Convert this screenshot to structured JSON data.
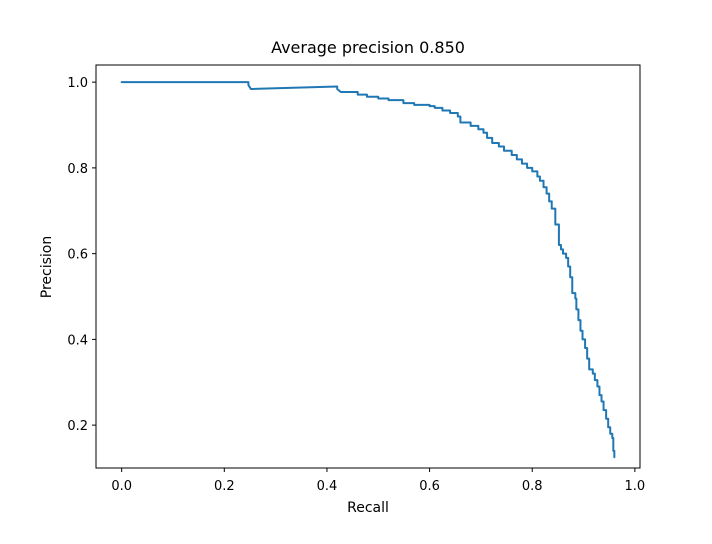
{
  "chart_data": {
    "type": "line",
    "title": "Average precision 0.850",
    "xlabel": "Recall",
    "ylabel": "Precision",
    "xlim": [
      -0.05,
      1.01
    ],
    "ylim": [
      0.1,
      1.04
    ],
    "xticks": [
      0.0,
      0.2,
      0.4,
      0.6,
      0.8,
      1.0
    ],
    "xtick_labels": [
      "0.0",
      "0.2",
      "0.4",
      "0.6",
      "0.8",
      "1.0"
    ],
    "yticks": [
      0.2,
      0.4,
      0.6,
      0.8,
      1.0
    ],
    "ytick_labels": [
      "0.2",
      "0.4",
      "0.6",
      "0.8",
      "1.0"
    ],
    "grid": false,
    "legend": "none",
    "series": [
      {
        "color": "#1f77b4",
        "step": true,
        "points": [
          [
            0.0,
            1.0
          ],
          [
            0.247,
            1.0
          ],
          [
            0.247,
            0.993
          ],
          [
            0.252,
            0.984
          ],
          [
            0.42,
            0.99
          ],
          [
            0.42,
            0.984
          ],
          [
            0.427,
            0.977
          ],
          [
            0.46,
            0.977
          ],
          [
            0.46,
            0.971
          ],
          [
            0.478,
            0.971
          ],
          [
            0.478,
            0.966
          ],
          [
            0.5,
            0.966
          ],
          [
            0.5,
            0.962
          ],
          [
            0.52,
            0.962
          ],
          [
            0.52,
            0.958
          ],
          [
            0.549,
            0.958
          ],
          [
            0.549,
            0.951
          ],
          [
            0.57,
            0.951
          ],
          [
            0.57,
            0.947
          ],
          [
            0.6,
            0.947
          ],
          [
            0.6,
            0.944
          ],
          [
            0.61,
            0.944
          ],
          [
            0.61,
            0.94
          ],
          [
            0.625,
            0.94
          ],
          [
            0.625,
            0.934
          ],
          [
            0.64,
            0.934
          ],
          [
            0.64,
            0.928
          ],
          [
            0.655,
            0.928
          ],
          [
            0.655,
            0.92
          ],
          [
            0.66,
            0.92
          ],
          [
            0.66,
            0.906
          ],
          [
            0.68,
            0.906
          ],
          [
            0.68,
            0.898
          ],
          [
            0.695,
            0.898
          ],
          [
            0.695,
            0.89
          ],
          [
            0.705,
            0.89
          ],
          [
            0.705,
            0.882
          ],
          [
            0.712,
            0.882
          ],
          [
            0.712,
            0.87
          ],
          [
            0.722,
            0.87
          ],
          [
            0.722,
            0.858
          ],
          [
            0.735,
            0.858
          ],
          [
            0.735,
            0.85
          ],
          [
            0.745,
            0.85
          ],
          [
            0.745,
            0.84
          ],
          [
            0.76,
            0.84
          ],
          [
            0.76,
            0.83
          ],
          [
            0.77,
            0.83
          ],
          [
            0.77,
            0.82
          ],
          [
            0.78,
            0.82
          ],
          [
            0.78,
            0.81
          ],
          [
            0.79,
            0.81
          ],
          [
            0.79,
            0.8
          ],
          [
            0.8,
            0.8
          ],
          [
            0.8,
            0.792
          ],
          [
            0.81,
            0.792
          ],
          [
            0.81,
            0.78
          ],
          [
            0.815,
            0.78
          ],
          [
            0.815,
            0.77
          ],
          [
            0.822,
            0.77
          ],
          [
            0.822,
            0.755
          ],
          [
            0.828,
            0.755
          ],
          [
            0.828,
            0.74
          ],
          [
            0.833,
            0.74
          ],
          [
            0.833,
            0.722
          ],
          [
            0.838,
            0.722
          ],
          [
            0.838,
            0.705
          ],
          [
            0.845,
            0.705
          ],
          [
            0.845,
            0.668
          ],
          [
            0.852,
            0.668
          ],
          [
            0.852,
            0.62
          ],
          [
            0.856,
            0.62
          ],
          [
            0.856,
            0.61
          ],
          [
            0.86,
            0.61
          ],
          [
            0.86,
            0.6
          ],
          [
            0.866,
            0.6
          ],
          [
            0.866,
            0.59
          ],
          [
            0.87,
            0.59
          ],
          [
            0.87,
            0.57
          ],
          [
            0.874,
            0.57
          ],
          [
            0.874,
            0.545
          ],
          [
            0.878,
            0.545
          ],
          [
            0.878,
            0.508
          ],
          [
            0.884,
            0.508
          ],
          [
            0.884,
            0.495
          ],
          [
            0.886,
            0.495
          ],
          [
            0.886,
            0.47
          ],
          [
            0.89,
            0.47
          ],
          [
            0.89,
            0.445
          ],
          [
            0.894,
            0.445
          ],
          [
            0.894,
            0.42
          ],
          [
            0.898,
            0.42
          ],
          [
            0.898,
            0.4
          ],
          [
            0.903,
            0.4
          ],
          [
            0.903,
            0.38
          ],
          [
            0.907,
            0.38
          ],
          [
            0.907,
            0.355
          ],
          [
            0.911,
            0.355
          ],
          [
            0.911,
            0.33
          ],
          [
            0.918,
            0.33
          ],
          [
            0.918,
            0.32
          ],
          [
            0.922,
            0.32
          ],
          [
            0.922,
            0.305
          ],
          [
            0.927,
            0.305
          ],
          [
            0.927,
            0.29
          ],
          [
            0.931,
            0.29
          ],
          [
            0.931,
            0.27
          ],
          [
            0.935,
            0.27
          ],
          [
            0.935,
            0.255
          ],
          [
            0.939,
            0.255
          ],
          [
            0.939,
            0.235
          ],
          [
            0.944,
            0.235
          ],
          [
            0.944,
            0.215
          ],
          [
            0.948,
            0.215
          ],
          [
            0.948,
            0.195
          ],
          [
            0.952,
            0.195
          ],
          [
            0.952,
            0.18
          ],
          [
            0.956,
            0.18
          ],
          [
            0.956,
            0.17
          ],
          [
            0.958,
            0.17
          ],
          [
            0.958,
            0.14
          ],
          [
            0.96,
            0.14
          ],
          [
            0.96,
            0.125
          ]
        ]
      }
    ]
  }
}
